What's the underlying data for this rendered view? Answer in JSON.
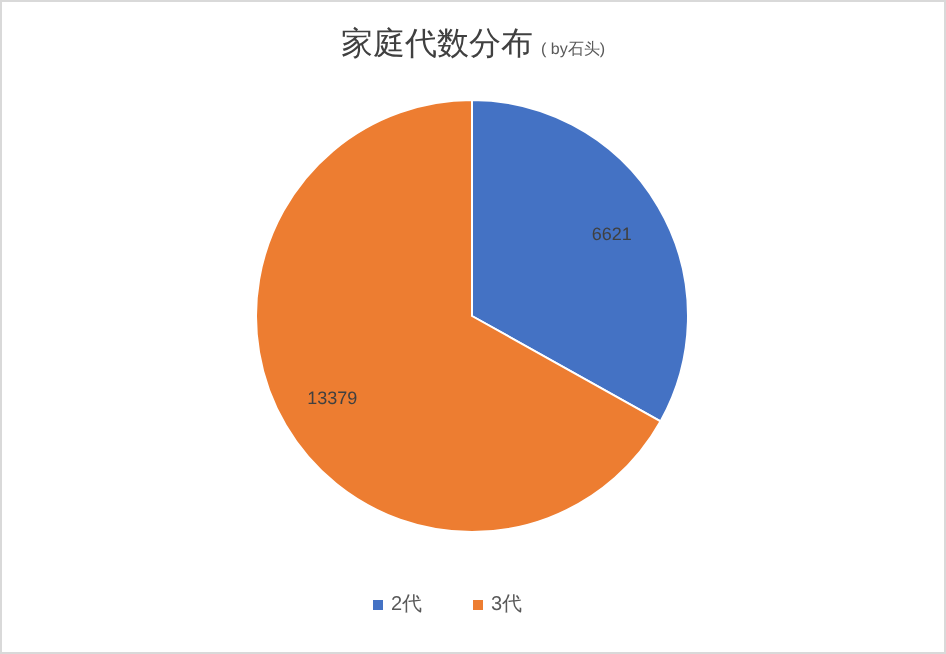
{
  "chart_data": {
    "type": "pie",
    "title": "家庭代数分布",
    "subtitle": "( by石头)",
    "categories": [
      "2代",
      "3代"
    ],
    "values": [
      6621,
      13379
    ],
    "colors": [
      "#4472c4",
      "#ed7d31"
    ],
    "data_labels": true,
    "legend": "bottom"
  }
}
